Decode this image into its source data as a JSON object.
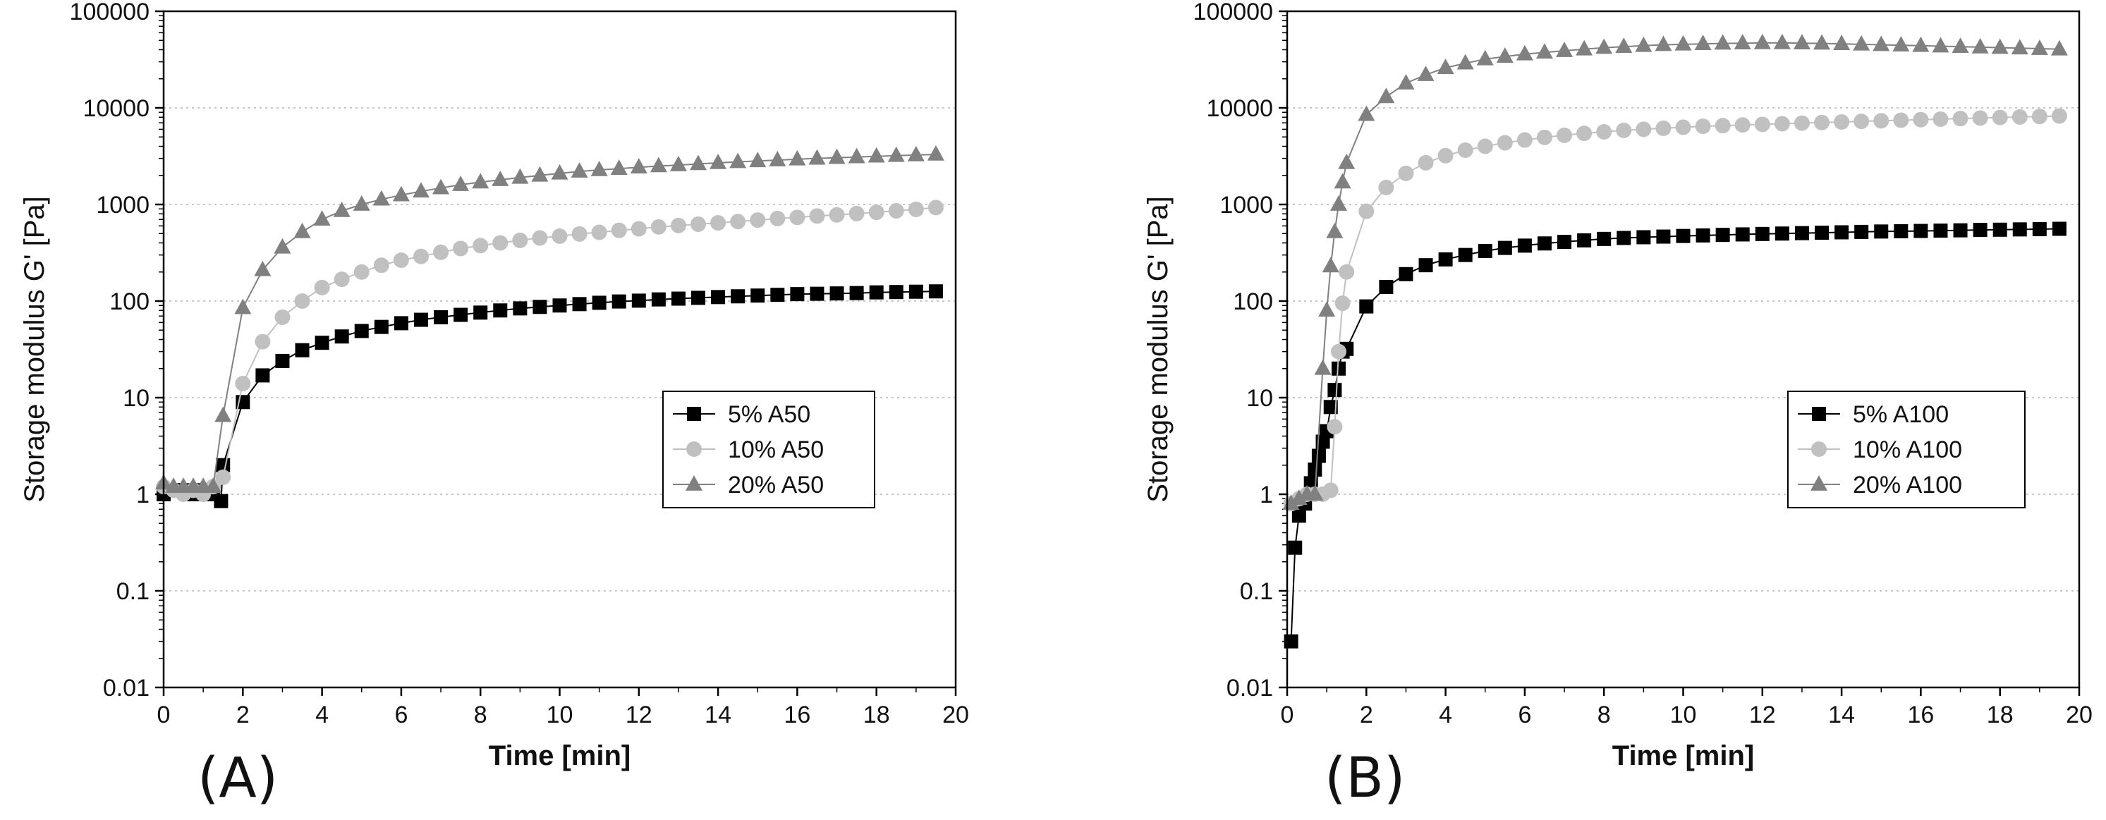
{
  "panels": [
    {
      "label": "(A)",
      "chart_data": {
        "type": "scatter",
        "yscale": "log",
        "xlabel": "Time [min]",
        "ylabel": "Storage modulus G' [Pa]",
        "xlim": [
          0,
          20
        ],
        "ylim": [
          0.01,
          100000
        ],
        "xticks": [
          "0",
          "2",
          "4",
          "6",
          "8",
          "10",
          "12",
          "14",
          "16",
          "18",
          "20"
        ],
        "yticks": [
          "0.01",
          "0.1",
          "1",
          "10",
          "100",
          "1000",
          "10000",
          "100000"
        ],
        "grid": "horizontal dotted",
        "legend_position": "right-middle",
        "series": [
          {
            "name": "5% A50",
            "marker": "square",
            "color": "#000000",
            "x": [
              0,
              0.25,
              0.5,
              0.75,
              1,
              1.25,
              1.45,
              1.5,
              2,
              2.5,
              3,
              3.5,
              4,
              4.5,
              5,
              5.5,
              6,
              6.5,
              7,
              7.5,
              8,
              8.5,
              9,
              9.5,
              10,
              10.5,
              11,
              11.5,
              12,
              12.5,
              13,
              13.5,
              14,
              14.5,
              15,
              15.5,
              16,
              16.5,
              17,
              17.5,
              18,
              18.5,
              19,
              19.5
            ],
            "y": [
              1.0,
              1.1,
              1.1,
              1.0,
              1.1,
              1.0,
              0.85,
              2.0,
              9,
              17,
              24,
              31,
              37,
              43,
              49,
              54,
              59,
              64,
              68,
              72,
              76,
              80,
              84,
              87,
              90,
              93,
              96,
              99,
              101,
              104,
              106,
              108,
              110,
              112,
              114,
              116,
              118,
              119,
              120,
              121,
              123,
              124,
              125,
              126
            ]
          },
          {
            "name": "10% A50",
            "marker": "circle",
            "color": "#c0c0c0",
            "x": [
              0,
              0.25,
              0.5,
              0.75,
              1,
              1.25,
              1.5,
              2,
              2.5,
              3,
              3.5,
              4,
              4.5,
              5,
              5.5,
              6,
              6.5,
              7,
              7.5,
              8,
              8.5,
              9,
              9.5,
              10,
              10.5,
              11,
              11.5,
              12,
              12.5,
              13,
              13.5,
              14,
              14.5,
              15,
              15.5,
              16,
              16.5,
              17,
              17.5,
              18,
              18.5,
              19,
              19.5
            ],
            "y": [
              1.2,
              1.1,
              1.0,
              1.1,
              1.0,
              1.2,
              1.5,
              14,
              38,
              68,
              100,
              138,
              168,
              200,
              235,
              265,
              290,
              320,
              350,
              375,
              400,
              425,
              450,
              470,
              495,
              515,
              540,
              560,
              585,
              605,
              625,
              645,
              665,
              690,
              715,
              735,
              760,
              780,
              805,
              830,
              860,
              890,
              930
            ]
          },
          {
            "name": "20% A50",
            "marker": "triangle",
            "color": "#808080",
            "x": [
              0,
              0.25,
              0.5,
              0.75,
              1,
              1.25,
              1.5,
              2,
              2.5,
              3,
              3.5,
              4,
              4.5,
              5,
              5.5,
              6,
              6.5,
              7,
              7.5,
              8,
              8.5,
              9,
              9.5,
              10,
              10.5,
              11,
              11.5,
              12,
              12.5,
              13,
              13.5,
              14,
              14.5,
              15,
              15.5,
              16,
              16.5,
              17,
              17.5,
              18,
              18.5,
              19,
              19.5
            ],
            "y": [
              1.3,
              1.2,
              1.2,
              1.2,
              1.2,
              1.2,
              6.5,
              85,
              210,
              360,
              520,
              700,
              860,
              1000,
              1130,
              1250,
              1370,
              1480,
              1600,
              1700,
              1800,
              1900,
              2000,
              2100,
              2200,
              2280,
              2350,
              2430,
              2500,
              2560,
              2630,
              2700,
              2760,
              2820,
              2880,
              2940,
              3000,
              3050,
              3100,
              3150,
              3200,
              3250,
              3300
            ]
          }
        ]
      }
    },
    {
      "label": "(B)",
      "chart_data": {
        "type": "scatter",
        "yscale": "log",
        "xlabel": "Time [min]",
        "ylabel": "Storage modulus G' [Pa]",
        "xlim": [
          0,
          20
        ],
        "ylim": [
          0.01,
          100000
        ],
        "xticks": [
          "0",
          "2",
          "4",
          "6",
          "8",
          "10",
          "12",
          "14",
          "16",
          "18",
          "20"
        ],
        "yticks": [
          "0.01",
          "0.1",
          "1",
          "10",
          "100",
          "1000",
          "10000",
          "100000"
        ],
        "grid": "horizontal dotted",
        "legend_position": "right-middle",
        "series": [
          {
            "name": "5% A100",
            "marker": "square",
            "color": "#000000",
            "x": [
              0.1,
              0.2,
              0.3,
              0.45,
              0.6,
              0.7,
              0.8,
              0.9,
              1.0,
              1.1,
              1.2,
              1.3,
              1.4,
              1.5,
              2,
              2.5,
              3,
              3.5,
              4,
              4.5,
              5,
              5.5,
              6,
              6.5,
              7,
              7.5,
              8,
              8.5,
              9,
              9.5,
              10,
              10.5,
              11,
              11.5,
              12,
              12.5,
              13,
              13.5,
              14,
              14.5,
              15,
              15.5,
              16,
              16.5,
              17,
              17.5,
              18,
              18.5,
              19,
              19.5
            ],
            "y": [
              0.03,
              0.28,
              0.6,
              0.8,
              1.3,
              1.8,
              2.5,
              3.5,
              4.5,
              8,
              12,
              20,
              30,
              32,
              88,
              140,
              190,
              235,
              270,
              300,
              330,
              355,
              375,
              395,
              410,
              425,
              440,
              450,
              458,
              465,
              472,
              478,
              484,
              490,
              495,
              500,
              505,
              510,
              515,
              520,
              525,
              528,
              532,
              536,
              540,
              545,
              548,
              552,
              555,
              560
            ]
          },
          {
            "name": "10% A100",
            "marker": "circle",
            "color": "#c0c0c0",
            "x": [
              0.1,
              0.3,
              0.5,
              0.7,
              0.9,
              1.1,
              1.2,
              1.3,
              1.4,
              1.5,
              2,
              2.5,
              3,
              3.5,
              4,
              4.5,
              5,
              5.5,
              6,
              6.5,
              7,
              7.5,
              8,
              8.5,
              9,
              9.5,
              10,
              10.5,
              11,
              11.5,
              12,
              12.5,
              13,
              13.5,
              14,
              14.5,
              15,
              15.5,
              16,
              16.5,
              17,
              17.5,
              18,
              18.5,
              19,
              19.5
            ],
            "y": [
              0.8,
              0.9,
              1.0,
              1.0,
              1.0,
              1.1,
              5,
              30,
              95,
              200,
              850,
              1500,
              2100,
              2700,
              3200,
              3650,
              4000,
              4350,
              4650,
              4950,
              5200,
              5450,
              5650,
              5850,
              6000,
              6150,
              6300,
              6450,
              6550,
              6650,
              6750,
              6850,
              6950,
              7050,
              7150,
              7250,
              7350,
              7450,
              7550,
              7650,
              7750,
              7850,
              7950,
              8050,
              8150,
              8250
            ]
          },
          {
            "name": "20% A100",
            "marker": "triangle",
            "color": "#808080",
            "x": [
              0.1,
              0.3,
              0.5,
              0.7,
              0.9,
              1.0,
              1.1,
              1.2,
              1.3,
              1.4,
              1.5,
              2,
              2.5,
              3,
              3.5,
              4,
              4.5,
              5,
              5.5,
              6,
              6.5,
              7,
              7.5,
              8,
              8.5,
              9,
              9.5,
              10,
              10.5,
              11,
              11.5,
              12,
              12.5,
              13,
              13.5,
              14,
              14.5,
              15,
              15.5,
              16,
              16.5,
              17,
              17.5,
              18,
              18.5,
              19,
              19.5
            ],
            "y": [
              0.8,
              0.9,
              1.0,
              1.0,
              20,
              80,
              230,
              520,
              1000,
              1700,
              2700,
              8500,
              13000,
              18000,
              22000,
              26000,
              29000,
              32000,
              34000,
              36000,
              37500,
              39000,
              40500,
              42000,
              43000,
              44000,
              45000,
              45500,
              46000,
              46500,
              46800,
              47000,
              47000,
              46800,
              46500,
              46000,
              45500,
              45000,
              44500,
              44000,
              43500,
              43000,
              42500,
              42000,
              41500,
              41000,
              40500
            ]
          }
        ]
      }
    }
  ]
}
